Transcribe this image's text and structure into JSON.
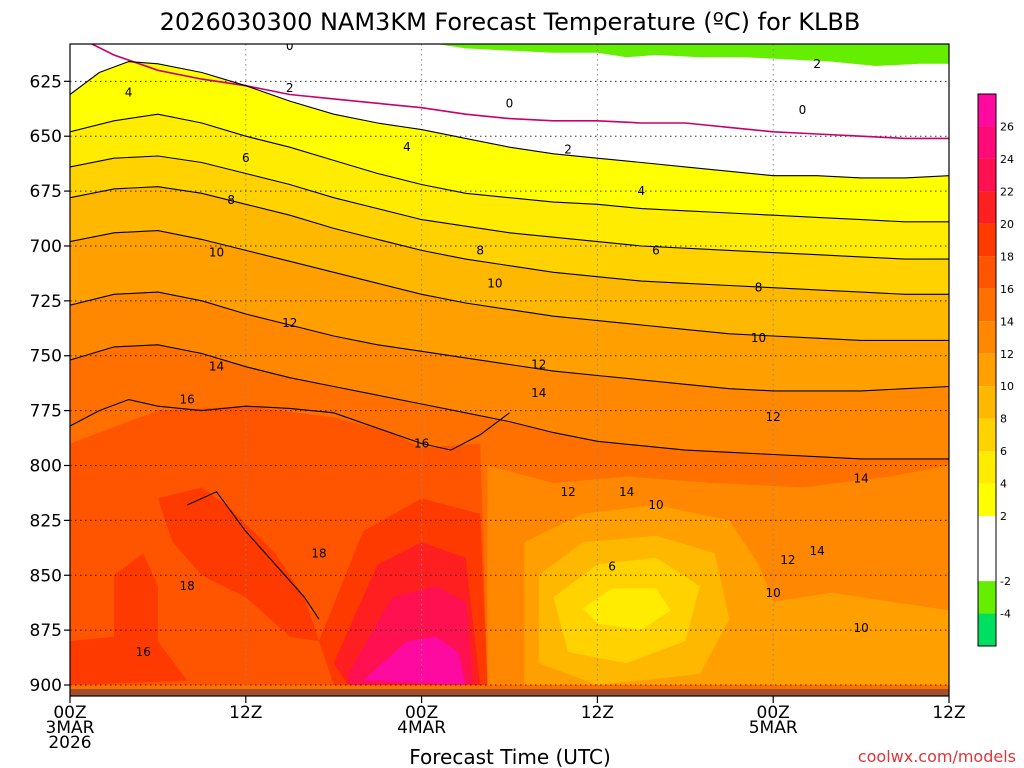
{
  "chart_data": {
    "type": "heatmap",
    "title": "2026030300 NAM3KM Forecast Temperature (ºC) for KLBB",
    "xlabel": "Forecast Time (UTC)",
    "ylabel": "",
    "credit": "coolwx.com/models",
    "y_axis": {
      "unit": "hPa",
      "range": [
        905,
        608
      ],
      "ticks": [
        625,
        650,
        675,
        700,
        725,
        750,
        775,
        800,
        825,
        850,
        875,
        900
      ],
      "tick_labels": [
        "625",
        "650",
        "675",
        "700",
        "725",
        "750",
        "775",
        "800",
        "825",
        "850",
        "875",
        "900"
      ]
    },
    "x_axis": {
      "unit": "forecast hour",
      "range": [
        0,
        60
      ],
      "ticks": [
        {
          "hour": 0,
          "lines": [
            "00Z",
            "3MAR",
            "2026"
          ]
        },
        {
          "hour": 12,
          "lines": [
            "12Z"
          ]
        },
        {
          "hour": 24,
          "lines": [
            "00Z",
            "4MAR"
          ]
        },
        {
          "hour": 36,
          "lines": [
            "12Z"
          ]
        },
        {
          "hour": 48,
          "lines": [
            "00Z",
            "5MAR"
          ]
        },
        {
          "hour": 60,
          "lines": [
            "12Z"
          ]
        }
      ]
    },
    "colorbar": {
      "range": [
        -6,
        28
      ],
      "tick_labels": [
        "26",
        "24",
        "22",
        "20",
        "18",
        "16",
        "14",
        "12",
        "10",
        "8",
        "6",
        "4",
        "2",
        "-2",
        "-4"
      ],
      "levels": [
        {
          "from": -6,
          "to": -4,
          "color": "#00e060"
        },
        {
          "from": -4,
          "to": -2,
          "color": "#66ee00"
        },
        {
          "from": -2,
          "to": 2,
          "color": "#ffffff"
        },
        {
          "from": 2,
          "to": 4,
          "color": "#ffff00"
        },
        {
          "from": 4,
          "to": 6,
          "color": "#ffec00"
        },
        {
          "from": 6,
          "to": 8,
          "color": "#ffd200"
        },
        {
          "from": 8,
          "to": 10,
          "color": "#ffb800"
        },
        {
          "from": 10,
          "to": 12,
          "color": "#ffa000"
        },
        {
          "from": 12,
          "to": 14,
          "color": "#ff8800"
        },
        {
          "from": 14,
          "to": 16,
          "color": "#ff7000"
        },
        {
          "from": 16,
          "to": 18,
          "color": "#ff5500"
        },
        {
          "from": 18,
          "to": 20,
          "color": "#ff3a00"
        },
        {
          "from": 20,
          "to": 22,
          "color": "#ff1f20"
        },
        {
          "from": 22,
          "to": 24,
          "color": "#ff1050"
        },
        {
          "from": 24,
          "to": 26,
          "color": "#ff0a78"
        },
        {
          "from": 26,
          "to": 28,
          "color": "#ff0aa0"
        }
      ]
    },
    "ground_color": "#a0522d",
    "zero_line_color": "#c8006e",
    "isotherms": [
      {
        "temp": 0,
        "points": [
          [
            1.5,
            608
          ],
          [
            3,
            613
          ],
          [
            6,
            620
          ],
          [
            9,
            624
          ],
          [
            12,
            627
          ],
          [
            15,
            631
          ],
          [
            18,
            633
          ],
          [
            21,
            635
          ],
          [
            24,
            637
          ],
          [
            27,
            640
          ],
          [
            30,
            642
          ],
          [
            33,
            643
          ],
          [
            36,
            643
          ],
          [
            39,
            644
          ],
          [
            42,
            644
          ],
          [
            45,
            646
          ],
          [
            48,
            648
          ],
          [
            51,
            649
          ],
          [
            54,
            650
          ],
          [
            57,
            651
          ],
          [
            60,
            651
          ]
        ]
      },
      {
        "temp": 2,
        "points": [
          [
            0,
            631
          ],
          [
            2,
            621
          ],
          [
            4,
            616
          ],
          [
            6,
            617
          ],
          [
            9,
            621
          ],
          [
            12,
            627
          ],
          [
            15,
            634
          ],
          [
            18,
            640
          ],
          [
            21,
            644
          ],
          [
            24,
            647
          ],
          [
            27,
            651
          ],
          [
            30,
            655
          ],
          [
            33,
            658
          ],
          [
            36,
            660
          ],
          [
            39,
            662
          ],
          [
            42,
            664
          ],
          [
            45,
            666
          ],
          [
            48,
            668
          ],
          [
            51,
            668
          ],
          [
            54,
            669
          ],
          [
            57,
            669
          ],
          [
            60,
            668
          ]
        ]
      },
      {
        "temp": 4,
        "points": [
          [
            0,
            648
          ],
          [
            3,
            643
          ],
          [
            6,
            640
          ],
          [
            9,
            644
          ],
          [
            12,
            650
          ],
          [
            15,
            655
          ],
          [
            18,
            661
          ],
          [
            21,
            667
          ],
          [
            24,
            672
          ],
          [
            27,
            676
          ],
          [
            30,
            678
          ],
          [
            33,
            680
          ],
          [
            36,
            681
          ],
          [
            39,
            683
          ],
          [
            42,
            684
          ],
          [
            45,
            685
          ],
          [
            48,
            686
          ],
          [
            51,
            687
          ],
          [
            54,
            688
          ],
          [
            57,
            689
          ],
          [
            60,
            689
          ]
        ]
      },
      {
        "temp": 6,
        "points": [
          [
            0,
            664
          ],
          [
            3,
            660
          ],
          [
            6,
            659
          ],
          [
            9,
            662
          ],
          [
            12,
            667
          ],
          [
            15,
            672
          ],
          [
            18,
            678
          ],
          [
            21,
            683
          ],
          [
            24,
            688
          ],
          [
            27,
            691
          ],
          [
            30,
            694
          ],
          [
            33,
            696
          ],
          [
            36,
            698
          ],
          [
            39,
            700
          ],
          [
            42,
            701
          ],
          [
            45,
            702
          ],
          [
            48,
            703
          ],
          [
            51,
            704
          ],
          [
            54,
            705
          ],
          [
            57,
            706
          ],
          [
            60,
            706
          ]
        ]
      },
      {
        "temp": 8,
        "points": [
          [
            0,
            678
          ],
          [
            3,
            674
          ],
          [
            6,
            673
          ],
          [
            9,
            676
          ],
          [
            12,
            681
          ],
          [
            15,
            686
          ],
          [
            18,
            692
          ],
          [
            21,
            697
          ],
          [
            24,
            702
          ],
          [
            27,
            706
          ],
          [
            30,
            709
          ],
          [
            33,
            712
          ],
          [
            36,
            714
          ],
          [
            39,
            716
          ],
          [
            42,
            717
          ],
          [
            45,
            718
          ],
          [
            48,
            719
          ],
          [
            51,
            720
          ],
          [
            54,
            721
          ],
          [
            57,
            722
          ],
          [
            60,
            722
          ]
        ]
      },
      {
        "temp": 10,
        "points": [
          [
            0,
            698
          ],
          [
            3,
            694
          ],
          [
            6,
            693
          ],
          [
            9,
            697
          ],
          [
            12,
            702
          ],
          [
            15,
            707
          ],
          [
            18,
            712
          ],
          [
            21,
            717
          ],
          [
            24,
            722
          ],
          [
            27,
            726
          ],
          [
            30,
            729
          ],
          [
            33,
            732
          ],
          [
            36,
            734
          ],
          [
            39,
            736
          ],
          [
            42,
            738
          ],
          [
            45,
            740
          ],
          [
            48,
            741
          ],
          [
            51,
            742
          ],
          [
            54,
            743
          ],
          [
            57,
            743
          ],
          [
            60,
            743
          ]
        ]
      },
      {
        "temp": 12,
        "points": [
          [
            0,
            727
          ],
          [
            3,
            722
          ],
          [
            6,
            721
          ],
          [
            9,
            725
          ],
          [
            12,
            731
          ],
          [
            15,
            736
          ],
          [
            18,
            741
          ],
          [
            21,
            745
          ],
          [
            24,
            748
          ],
          [
            27,
            751
          ],
          [
            30,
            754
          ],
          [
            33,
            757
          ],
          [
            36,
            759
          ],
          [
            39,
            761
          ],
          [
            42,
            763
          ],
          [
            45,
            765
          ],
          [
            48,
            766
          ],
          [
            51,
            766
          ],
          [
            54,
            766
          ],
          [
            57,
            765
          ],
          [
            60,
            764
          ]
        ]
      },
      {
        "temp": 14,
        "points": [
          [
            0,
            752
          ],
          [
            3,
            746
          ],
          [
            6,
            745
          ],
          [
            9,
            749
          ],
          [
            12,
            755
          ],
          [
            15,
            760
          ],
          [
            18,
            764
          ],
          [
            21,
            768
          ],
          [
            24,
            772
          ],
          [
            27,
            776
          ],
          [
            30,
            780
          ],
          [
            33,
            785
          ],
          [
            36,
            789
          ],
          [
            39,
            791
          ],
          [
            42,
            793
          ],
          [
            45,
            794
          ],
          [
            48,
            795
          ],
          [
            51,
            796
          ],
          [
            54,
            797
          ],
          [
            57,
            797
          ],
          [
            60,
            797
          ]
        ]
      },
      {
        "temp": 16,
        "points": [
          [
            0,
            782
          ],
          [
            2,
            775
          ],
          [
            4,
            770
          ],
          [
            6,
            773
          ],
          [
            9,
            775
          ],
          [
            12,
            773
          ],
          [
            15,
            774
          ],
          [
            18,
            776
          ],
          [
            21,
            783
          ],
          [
            24,
            790
          ],
          [
            26,
            793
          ],
          [
            28,
            786
          ],
          [
            30,
            776
          ]
        ]
      },
      {
        "temp": 18,
        "points": [
          [
            8,
            818
          ],
          [
            10,
            812
          ],
          [
            12,
            830
          ],
          [
            14,
            845
          ],
          [
            16,
            860
          ],
          [
            17,
            870
          ]
        ]
      }
    ],
    "isotherm_labels": [
      {
        "text": "0",
        "hour": 15,
        "hpa": 609
      },
      {
        "text": "0",
        "hour": 30,
        "hpa": 635
      },
      {
        "text": "0",
        "hour": 50,
        "hpa": 638
      },
      {
        "text": "2",
        "hour": 51,
        "hpa": 617
      },
      {
        "text": "2",
        "hour": 15,
        "hpa": 628
      },
      {
        "text": "2",
        "hour": 34,
        "hpa": 656
      },
      {
        "text": "4",
        "hour": 4,
        "hpa": 630
      },
      {
        "text": "4",
        "hour": 23,
        "hpa": 655
      },
      {
        "text": "4",
        "hour": 39,
        "hpa": 675
      },
      {
        "text": "6",
        "hour": 12,
        "hpa": 660
      },
      {
        "text": "6",
        "hour": 40,
        "hpa": 702
      },
      {
        "text": "6",
        "hour": 37,
        "hpa": 846
      },
      {
        "text": "8",
        "hour": 11,
        "hpa": 679
      },
      {
        "text": "8",
        "hour": 28,
        "hpa": 702
      },
      {
        "text": "8",
        "hour": 47,
        "hpa": 719
      },
      {
        "text": "10",
        "hour": 10,
        "hpa": 703
      },
      {
        "text": "10",
        "hour": 29,
        "hpa": 717
      },
      {
        "text": "10",
        "hour": 47,
        "hpa": 742
      },
      {
        "text": "10",
        "hour": 40,
        "hpa": 818
      },
      {
        "text": "10",
        "hour": 48,
        "hpa": 858
      },
      {
        "text": "10",
        "hour": 54,
        "hpa": 874
      },
      {
        "text": "12",
        "hour": 15,
        "hpa": 735
      },
      {
        "text": "12",
        "hour": 32,
        "hpa": 754
      },
      {
        "text": "12",
        "hour": 48,
        "hpa": 778
      },
      {
        "text": "12",
        "hour": 34,
        "hpa": 812
      },
      {
        "text": "12",
        "hour": 49,
        "hpa": 843
      },
      {
        "text": "14",
        "hour": 10,
        "hpa": 755
      },
      {
        "text": "14",
        "hour": 32,
        "hpa": 767
      },
      {
        "text": "14",
        "hour": 54,
        "hpa": 806
      },
      {
        "text": "14",
        "hour": 38,
        "hpa": 812
      },
      {
        "text": "14",
        "hour": 51,
        "hpa": 839
      },
      {
        "text": "16",
        "hour": 8,
        "hpa": 770
      },
      {
        "text": "16",
        "hour": 24,
        "hpa": 790
      },
      {
        "text": "16",
        "hour": 5,
        "hpa": 885
      },
      {
        "text": "18",
        "hour": 17,
        "hpa": 840
      },
      {
        "text": "18",
        "hour": 8,
        "hpa": 855
      }
    ]
  }
}
